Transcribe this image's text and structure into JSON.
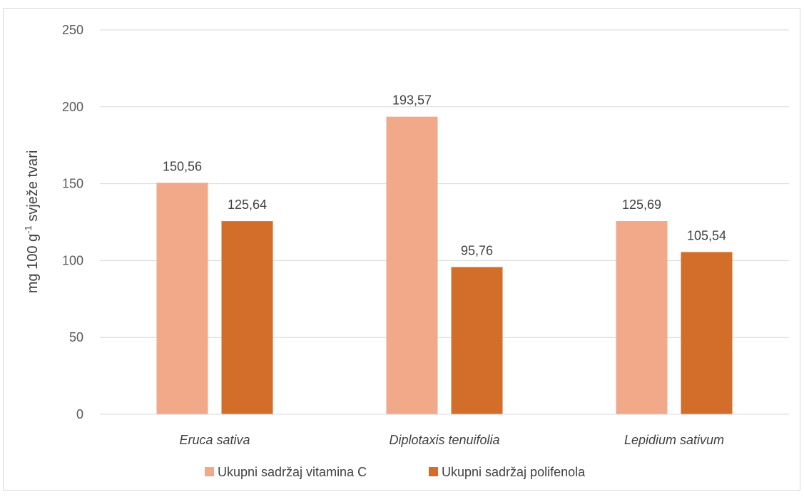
{
  "chart_data": {
    "type": "bar",
    "categories": [
      "Eruca sativa",
      "Diplotaxis tenuifolia",
      "Lepidium sativum"
    ],
    "series": [
      {
        "name": "Ukupni sadržaj vitamina C",
        "values": [
          150.56,
          193.57,
          125.69
        ],
        "labels": [
          "150,56",
          "193,57",
          "125,69"
        ],
        "color": "#f2a98a"
      },
      {
        "name": "Ukupni sadržaj polifenola",
        "values": [
          125.64,
          95.76,
          105.54
        ],
        "labels": [
          "125,64",
          "95,76",
          "105,54"
        ],
        "color": "#d36e2a"
      }
    ],
    "title": "",
    "xlabel": "",
    "ylabel": {
      "prefix": "mg 100 g",
      "superscript": "-1",
      "suffix": " svježe tvari"
    },
    "ylim": [
      0,
      250
    ],
    "yticks": [
      "0",
      "50",
      "100",
      "150",
      "200",
      "250"
    ],
    "grid": true,
    "legend_position": "bottom"
  },
  "colors": {
    "gridline": "#d9d9d9",
    "frame": "#d9d9d9"
  }
}
